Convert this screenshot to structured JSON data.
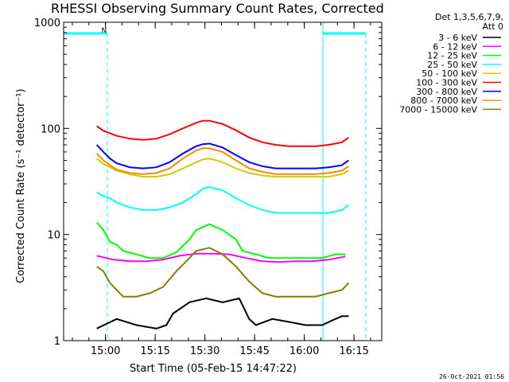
{
  "chart_data": {
    "type": "line",
    "title": "RHESSI Observing Summary Count Rates, Corrected",
    "xlabel": "Start Time (05-Feb-15 14:47:22)",
    "ylabel": "Corrected Count Rate (s⁻¹ detector⁻¹)",
    "x_unit": "minutes after 14:47:22",
    "xlim": [
      0,
      96
    ],
    "ylim": [
      1,
      1000
    ],
    "yscale": "log",
    "xticks": [
      {
        "x": 12.63,
        "label": "15:00"
      },
      {
        "x": 27.63,
        "label": "15:15"
      },
      {
        "x": 42.63,
        "label": "15:30"
      },
      {
        "x": 57.63,
        "label": "15:45"
      },
      {
        "x": 72.63,
        "label": "16:00"
      },
      {
        "x": 87.63,
        "label": "16:15"
      }
    ],
    "yticks": [
      {
        "y": 1,
        "label": "1"
      },
      {
        "y": 10,
        "label": "10"
      },
      {
        "y": 100,
        "label": "100"
      },
      {
        "y": 1000,
        "label": "1000"
      }
    ],
    "legend_header": [
      "Det 1,3,5,6,7,9,",
      "Att 0"
    ],
    "legend_placement": "right",
    "series": [
      {
        "name": "3 - 6 keV",
        "color": "#000000",
        "x": [
          10,
          16,
          22,
          28,
          31,
          33,
          38,
          43,
          48,
          53,
          56,
          58,
          63,
          68,
          73,
          78,
          82,
          84,
          86
        ],
        "y": [
          1.3,
          1.6,
          1.4,
          1.3,
          1.4,
          1.8,
          2.3,
          2.5,
          2.3,
          2.5,
          1.6,
          1.4,
          1.6,
          1.5,
          1.4,
          1.4,
          1.6,
          1.7,
          1.7
        ]
      },
      {
        "name": "6 - 12 keV",
        "color": "#ff00ff",
        "x": [
          10,
          15,
          20,
          25,
          30,
          35,
          40,
          45,
          50,
          55,
          60,
          65,
          70,
          75,
          80,
          85
        ],
        "y": [
          6.3,
          5.8,
          5.6,
          5.6,
          5.8,
          6.3,
          6.6,
          6.6,
          6.5,
          6.0,
          5.6,
          5.5,
          5.6,
          5.6,
          5.8,
          6.2
        ]
      },
      {
        "name": "12 - 25 keV",
        "color": "#00ff00",
        "x": [
          10,
          12,
          14,
          16,
          18,
          22,
          26,
          30,
          34,
          38,
          40,
          44,
          48,
          52,
          54,
          58,
          62,
          66,
          70,
          74,
          78,
          82,
          85
        ],
        "y": [
          13,
          11,
          8.5,
          8,
          7,
          6.5,
          6,
          6,
          6.8,
          9,
          11,
          12.5,
          11,
          9,
          7,
          6.5,
          6,
          6,
          6,
          6,
          6,
          6.5,
          6.5
        ]
      },
      {
        "name": "25 - 50 keV",
        "color": "#00ffff",
        "x": [
          10,
          12,
          14,
          16,
          20,
          24,
          28,
          32,
          36,
          40,
          42,
          44,
          48,
          52,
          56,
          60,
          64,
          68,
          72,
          76,
          80,
          84,
          86
        ],
        "y": [
          25,
          23,
          22,
          20,
          18,
          17,
          17,
          18,
          20,
          24,
          27,
          28,
          26,
          22,
          19,
          17,
          16,
          16,
          16,
          16,
          16,
          17,
          19
        ]
      },
      {
        "name": "50 - 100 keV",
        "color": "#cccc00",
        "x": [
          10,
          12,
          14,
          16,
          20,
          24,
          28,
          32,
          36,
          40,
          42,
          44,
          48,
          52,
          56,
          60,
          64,
          68,
          72,
          76,
          80,
          84,
          86
        ],
        "y": [
          52,
          46,
          43,
          40,
          37,
          35,
          35,
          37,
          42,
          48,
          51,
          52,
          48,
          42,
          38,
          36,
          35,
          35,
          35,
          35,
          35,
          37,
          40
        ]
      },
      {
        "name": "100 - 300 keV",
        "color": "#ff0000",
        "x": [
          10,
          12,
          14,
          16,
          20,
          24,
          28,
          32,
          36,
          40,
          42,
          44,
          48,
          52,
          56,
          60,
          64,
          68,
          72,
          76,
          80,
          84,
          86
        ],
        "y": [
          105,
          95,
          90,
          85,
          80,
          78,
          80,
          88,
          100,
          113,
          118,
          118,
          110,
          96,
          82,
          74,
          70,
          68,
          68,
          68,
          70,
          74,
          82
        ]
      },
      {
        "name": "300 - 800 keV",
        "color": "#0000ff",
        "x": [
          10,
          12,
          14,
          16,
          20,
          24,
          28,
          32,
          36,
          40,
          42,
          44,
          48,
          52,
          56,
          60,
          64,
          68,
          72,
          76,
          80,
          84,
          86
        ],
        "y": [
          70,
          60,
          52,
          47,
          43,
          42,
          43,
          48,
          58,
          68,
          71,
          72,
          66,
          56,
          48,
          44,
          42,
          42,
          42,
          42,
          43,
          45,
          50
        ]
      },
      {
        "name": "800 - 7000 keV",
        "color": "#ff8800",
        "x": [
          10,
          12,
          14,
          16,
          20,
          24,
          28,
          32,
          36,
          40,
          42,
          44,
          48,
          52,
          56,
          60,
          64,
          68,
          72,
          76,
          80,
          84,
          86
        ],
        "y": [
          58,
          50,
          45,
          41,
          38,
          37,
          38,
          42,
          52,
          62,
          65,
          65,
          60,
          50,
          42,
          39,
          37,
          37,
          37,
          37,
          38,
          40,
          44
        ]
      },
      {
        "name": "7000 - 15000 keV",
        "color": "#808000",
        "x": [
          10,
          12,
          14,
          16,
          18,
          22,
          26,
          30,
          34,
          38,
          40,
          44,
          48,
          52,
          56,
          60,
          64,
          68,
          72,
          76,
          80,
          84,
          86
        ],
        "y": [
          5,
          4.5,
          3.5,
          3,
          2.6,
          2.6,
          2.8,
          3.2,
          4.5,
          6,
          7,
          7.5,
          6.5,
          5,
          3.6,
          2.8,
          2.6,
          2.6,
          2.6,
          2.6,
          2.8,
          3,
          3.5
        ]
      }
    ],
    "annotations": [
      {
        "text": "N",
        "x": 11.4,
        "y": 800
      }
    ],
    "footer_timestamp": "26-Oct-2021 01:56"
  }
}
